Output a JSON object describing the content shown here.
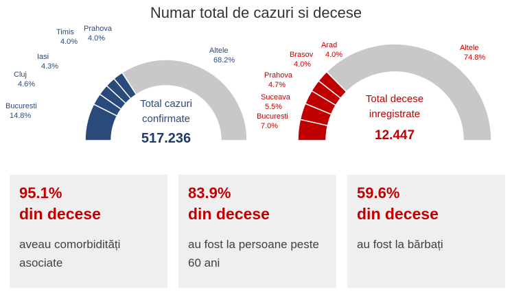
{
  "title": "Numar total de cazuri si decese",
  "chart_data": [
    {
      "type": "pie",
      "variant": "half-donut",
      "accent_color": "#2a4a7b",
      "other_color": "#c8c8c8",
      "center_label": [
        "Total cazuri",
        "confirmate"
      ],
      "total": "517.236",
      "slices": [
        {
          "label": "Bucuresti",
          "value": 14.8,
          "display": "14.8%"
        },
        {
          "label": "Cluj",
          "value": 4.6,
          "display": "4.6%"
        },
        {
          "label": "Iasi",
          "value": 4.3,
          "display": "4.3%"
        },
        {
          "label": "Timis",
          "value": 4.0,
          "display": "4.0%"
        },
        {
          "label": "Prahova",
          "value": 4.0,
          "display": "4.0%"
        },
        {
          "label": "Altele",
          "value": 68.2,
          "display": "68.2%"
        }
      ]
    },
    {
      "type": "pie",
      "variant": "half-donut",
      "accent_color": "#c00000",
      "other_color": "#c8c8c8",
      "center_label": [
        "Total decese",
        "inregistrate"
      ],
      "total": "12.447",
      "slices": [
        {
          "label": "Bucuresti",
          "value": 7.0,
          "display": "7.0%"
        },
        {
          "label": "Suceava",
          "value": 5.5,
          "display": "5.5%"
        },
        {
          "label": "Prahova",
          "value": 4.7,
          "display": "4.7%"
        },
        {
          "label": "Brasov",
          "value": 4.0,
          "display": "4.0%"
        },
        {
          "label": "Arad",
          "value": 4.0,
          "display": "4.0%"
        },
        {
          "label": "Altele",
          "value": 74.8,
          "display": "74.8%"
        }
      ]
    }
  ],
  "cards": [
    {
      "pct": "95.1%",
      "head": "din decese",
      "desc": "aveau comorbidități asociate"
    },
    {
      "pct": "83.9%",
      "head": "din decese",
      "desc": "au fost la persoane peste 60 ani"
    },
    {
      "pct": "59.6%",
      "head": "din decese",
      "desc": "au fost la bărbați"
    }
  ]
}
